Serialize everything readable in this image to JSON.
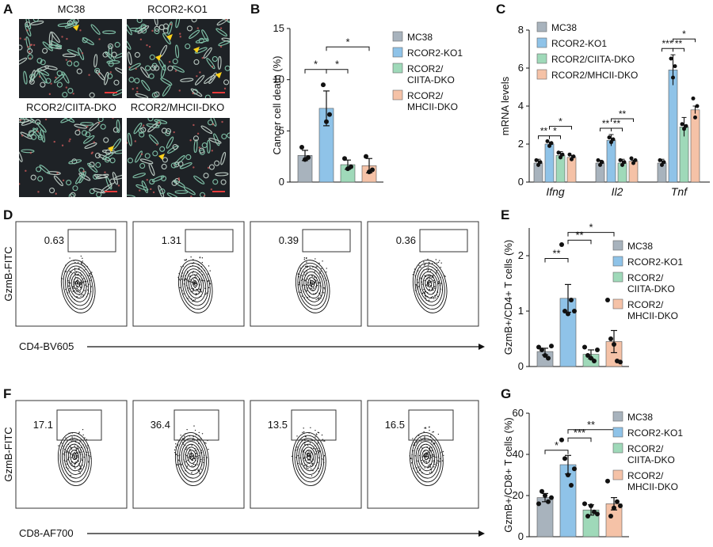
{
  "colors": {
    "mc38": "#a8b3bd",
    "ko1": "#8fc3e8",
    "ciita": "#9fd9b9",
    "mhcii": "#f5c2a7"
  },
  "A": {
    "letter": "A",
    "titles": [
      "MC38",
      "RCOR2-KO1",
      "RCOR2/CIITA-DKO",
      "RCOR2/MHCII-DKO"
    ]
  },
  "B": {
    "letter": "B",
    "chart_data": {
      "type": "bar",
      "ylabel": "Cancer cell death (%)",
      "ylim": [
        0,
        15
      ],
      "yticks": [
        0,
        5,
        10,
        15
      ],
      "categories": [
        "MC38",
        "RCOR2-KO1",
        "RCOR2/CIITA-DKO",
        "RCOR2/MHCII-DKO"
      ],
      "values": [
        2.6,
        7.2,
        1.7,
        1.6
      ],
      "errors": [
        0.5,
        1.7,
        0.45,
        0.7
      ],
      "points": [
        [
          3.4,
          2.2,
          2.4
        ],
        [
          9.5,
          5.9,
          6.6
        ],
        [
          2.3,
          1.3,
          1.5
        ],
        [
          2.5,
          1.0,
          1.2
        ]
      ],
      "sig": [
        "*",
        "*",
        "*"
      ]
    },
    "legend": [
      [
        "MC38"
      ],
      [
        "RCOR2-KO1"
      ],
      [
        "RCOR2/",
        "CIITA-DKO"
      ],
      [
        "RCOR2/",
        "MHCII-DKO"
      ]
    ]
  },
  "C": {
    "letter": "C",
    "chart_data": {
      "type": "bar",
      "ylabel": "mRNA levels",
      "ylim": [
        0,
        8
      ],
      "yticks": [
        0,
        2,
        4,
        6,
        8
      ],
      "categories": [
        "Ifng",
        "Il2",
        "Tnf"
      ],
      "series": [
        {
          "name": "MC38",
          "values": [
            1.0,
            1.0,
            1.0
          ],
          "errors": [
            0.2,
            0.15,
            0.2
          ]
        },
        {
          "name": "RCOR2-KO1",
          "values": [
            2.0,
            2.2,
            5.9
          ],
          "errors": [
            0.1,
            0.3,
            0.8
          ]
        },
        {
          "name": "RCOR2/CIITA-DKO",
          "values": [
            1.4,
            1.0,
            2.9
          ],
          "errors": [
            0.2,
            0.2,
            0.5
          ]
        },
        {
          "name": "RCOR2/MHCII-DKO",
          "values": [
            1.3,
            1.1,
            3.8
          ],
          "errors": [
            0.1,
            0.05,
            0.2
          ]
        }
      ],
      "sig": {
        "Ifng": [
          "**",
          "*",
          "*"
        ],
        "Il2": [
          "**",
          "**",
          "**"
        ],
        "Tnf": [
          "***",
          "**",
          "*"
        ]
      }
    },
    "legend": [
      "MC38",
      "RCOR2-KO1",
      "RCOR2/CIITA-DKO",
      "RCOR2/MHCII-DKO"
    ]
  },
  "D": {
    "letter": "D",
    "ylabel": "GzmB-FITC",
    "xlabel": "CD4-BV605",
    "titles": [
      "MC38",
      "RCOR2-KO1",
      "RCOR2/CIITA-DKO",
      "RCOR2/MHCII-DKO"
    ],
    "values": [
      "0.63",
      "1.31",
      "0.39",
      "0.36"
    ]
  },
  "E": {
    "letter": "E",
    "chart_data": {
      "type": "bar",
      "ylabel": "GzmB+/CD4+ T cells (%)",
      "ylim": [
        0,
        2.5
      ],
      "yticks": [
        0,
        1,
        2
      ],
      "categories": [
        "MC38",
        "RCOR2-KO1",
        "RCOR2/CIITA-DKO",
        "RCOR2/MHCII-DKO"
      ],
      "values": [
        0.27,
        1.23,
        0.22,
        0.45
      ],
      "errors": [
        0.06,
        0.25,
        0.08,
        0.2
      ],
      "points": [
        [
          0.35,
          0.3,
          0.2,
          0.15,
          0.37
        ],
        [
          2.2,
          1.0,
          0.95,
          1.2,
          1.0
        ],
        [
          0.35,
          0.2,
          0.15,
          0.1,
          0.3
        ],
        [
          1.2,
          0.5,
          0.4,
          0.1,
          0.08
        ]
      ],
      "sig": [
        "**",
        "**",
        "*"
      ]
    },
    "legend": [
      [
        "MC38"
      ],
      [
        "RCOR2-KO1"
      ],
      [
        "RCOR2/",
        "CIITA-DKO"
      ],
      [
        "RCOR2/",
        "MHCII-DKO"
      ]
    ]
  },
  "F": {
    "letter": "F",
    "ylabel": "GzmB-FITC",
    "xlabel": "CD8-AF700",
    "titles": [
      "MC38",
      "RCOR2-KO1",
      "RCOR2/CIITA-DKO",
      "RCOR2/MHCII-DKO"
    ],
    "values": [
      "17.1",
      "36.4",
      "13.5",
      "16.5"
    ]
  },
  "G": {
    "letter": "G",
    "chart_data": {
      "type": "bar",
      "ylabel": "GzmB+/CD8+ T cells (%)",
      "ylim": [
        0,
        60
      ],
      "yticks": [
        0,
        20,
        40,
        60
      ],
      "categories": [
        "MC38",
        "RCOR2-KO1",
        "RCOR2/CIITA-DKO",
        "RCOR2/MHCII-DKO"
      ],
      "values": [
        19,
        35,
        13,
        16
      ],
      "errors": [
        2,
        4.5,
        2.5,
        3
      ],
      "points": [
        [
          16,
          22,
          20,
          17,
          19
        ],
        [
          47,
          38,
          30,
          25,
          33
        ],
        [
          16,
          10,
          15,
          12,
          11
        ],
        [
          27,
          10,
          14,
          17,
          15
        ]
      ],
      "sig": [
        "*",
        "***",
        "**"
      ]
    },
    "legend": [
      [
        "MC38"
      ],
      [
        "RCOR2-KO1"
      ],
      [
        "RCOR2/",
        "CIITA-DKO"
      ],
      [
        "RCOR2/",
        "MHCII-DKO"
      ]
    ]
  }
}
